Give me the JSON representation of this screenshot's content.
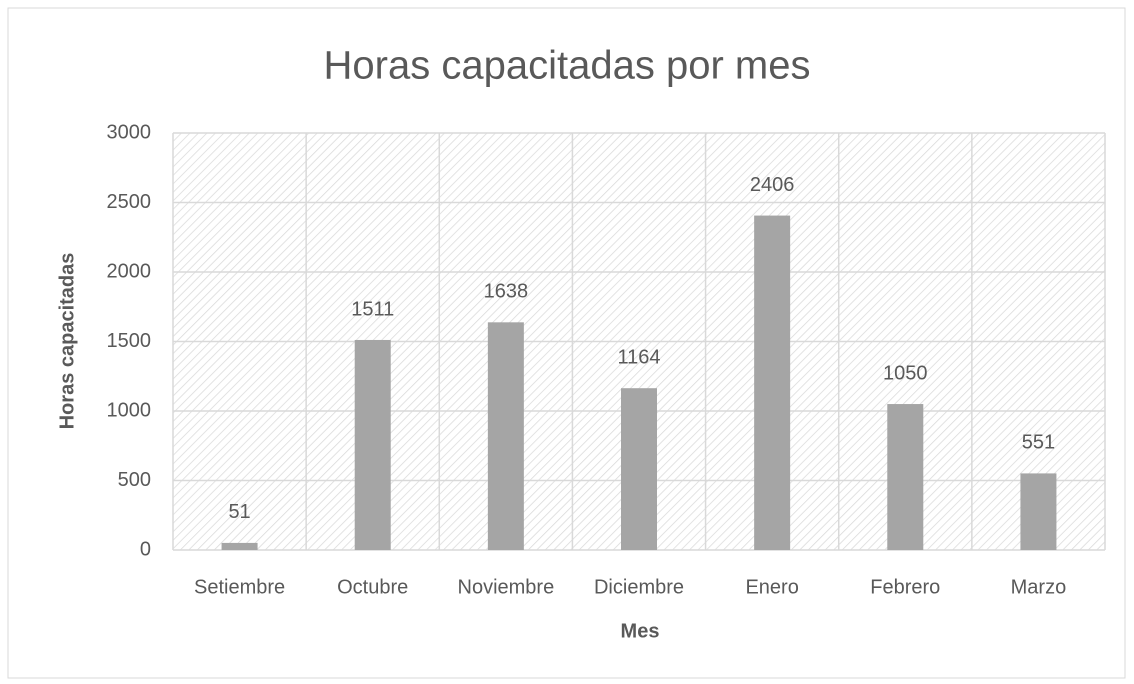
{
  "chart_data": {
    "type": "bar",
    "title": "Horas capacitadas por mes",
    "x_label": "Mes",
    "y_label": "Horas capacitadas",
    "categories": [
      "Setiembre",
      "Octubre",
      "Noviembre",
      "Diciembre",
      "Enero",
      "Febrero",
      "Marzo"
    ],
    "values": [
      51,
      1511,
      1638,
      1164,
      2406,
      1050,
      551
    ],
    "color": "#a5a5a5",
    "ylim": [
      0,
      3000
    ],
    "yticks": [
      0,
      500,
      1000,
      1500,
      2000,
      2500,
      3000
    ],
    "grid": true
  }
}
